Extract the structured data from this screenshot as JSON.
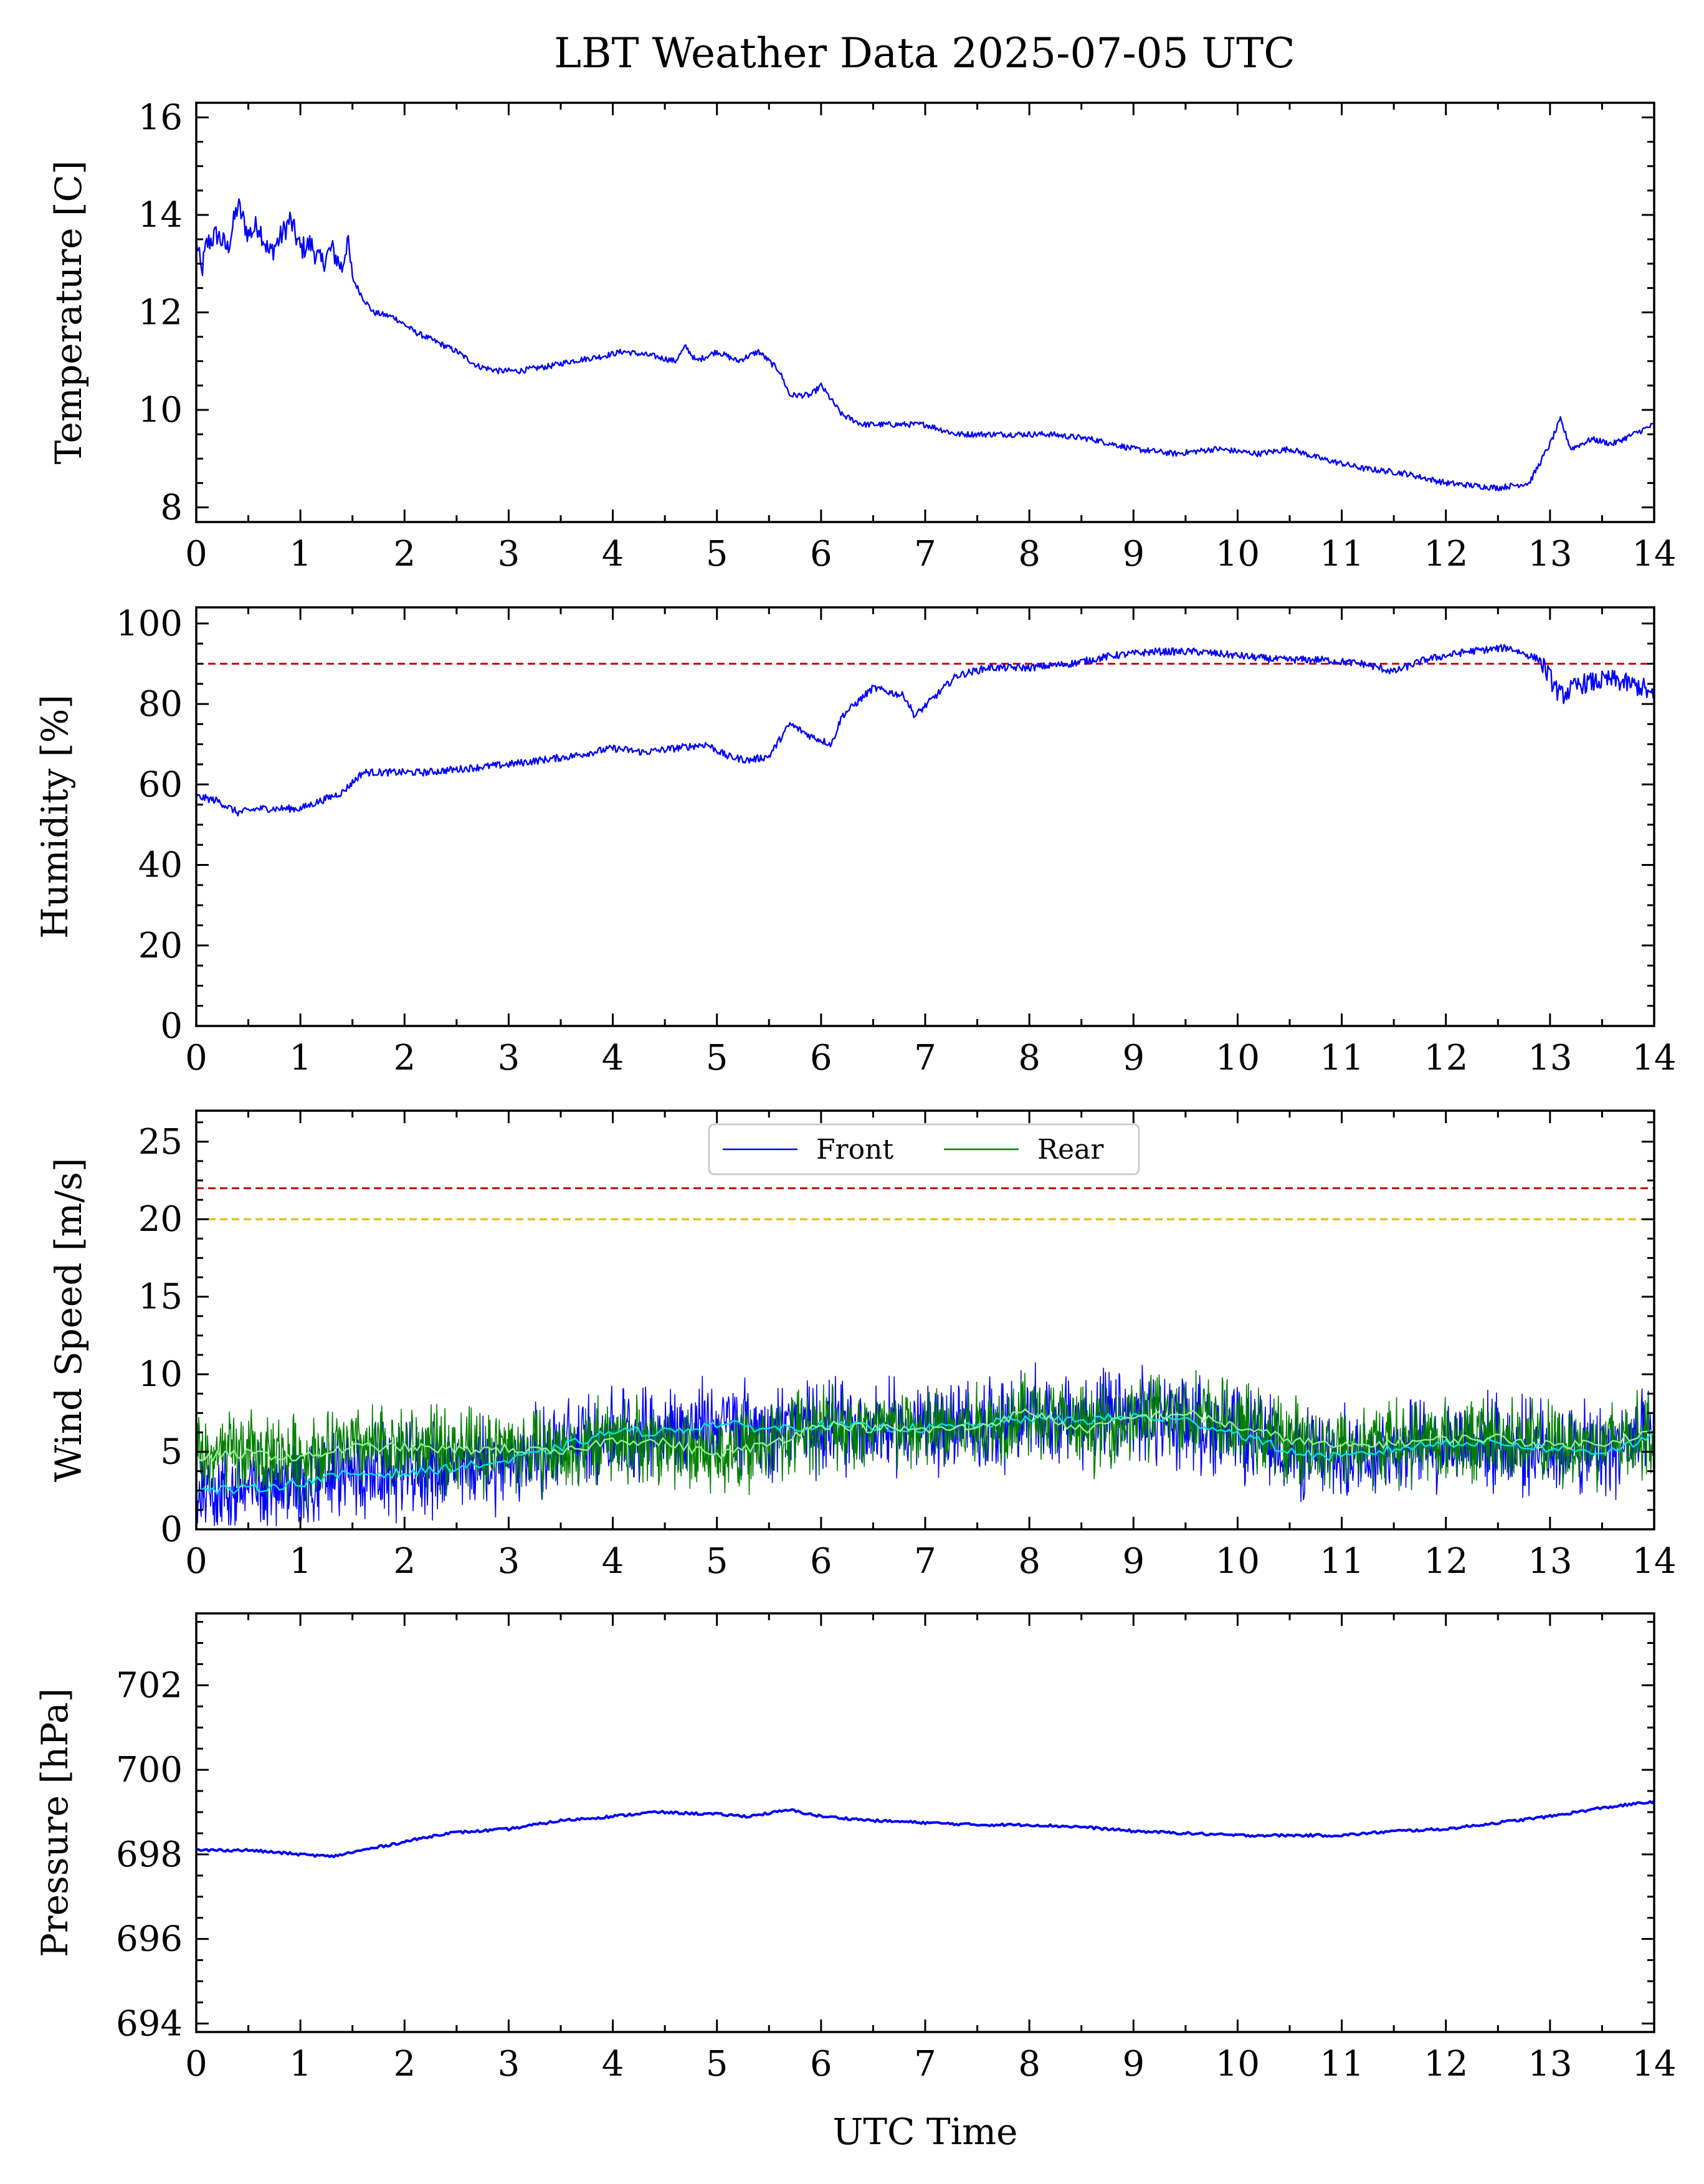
{
  "chart_data": [
    {
      "type": "line",
      "title": "LBT Weather Data 2025-07-05 UTC",
      "xlabel": "",
      "ylabel": "Temperature [C]",
      "xlim": [
        0,
        14
      ],
      "ylim": [
        7.7,
        16.3
      ],
      "yticks": [
        8,
        10,
        12,
        14,
        16
      ],
      "xticks": [
        0,
        1,
        2,
        3,
        4,
        5,
        6,
        7,
        8,
        9,
        10,
        11,
        12,
        13,
        14
      ],
      "series": [
        {
          "color": "#0000ff",
          "points": [
            [
              0,
              13.5
            ],
            [
              0.05,
              12.8
            ],
            [
              0.1,
              13.4
            ],
            [
              0.2,
              13.6
            ],
            [
              0.3,
              13.3
            ],
            [
              0.4,
              14.2
            ],
            [
              0.5,
              13.6
            ],
            [
              0.6,
              13.8
            ],
            [
              0.7,
              13.2
            ],
            [
              0.8,
              13.5
            ],
            [
              0.9,
              13.9
            ],
            [
              1.0,
              13.3
            ],
            [
              1.1,
              13.4
            ],
            [
              1.2,
              13.0
            ],
            [
              1.3,
              13.3
            ],
            [
              1.4,
              12.9
            ],
            [
              1.45,
              13.5
            ],
            [
              1.5,
              12.7
            ],
            [
              1.6,
              12.3
            ],
            [
              1.7,
              12.0
            ],
            [
              1.9,
              11.9
            ],
            [
              2.1,
              11.6
            ],
            [
              2.3,
              11.4
            ],
            [
              2.5,
              11.2
            ],
            [
              2.7,
              10.9
            ],
            [
              2.9,
              10.8
            ],
            [
              3.1,
              10.8
            ],
            [
              3.4,
              10.9
            ],
            [
              3.6,
              11.0
            ],
            [
              3.9,
              11.1
            ],
            [
              4.1,
              11.2
            ],
            [
              4.4,
              11.1
            ],
            [
              4.6,
              11.0
            ],
            [
              4.7,
              11.3
            ],
            [
              4.8,
              11.0
            ],
            [
              5.0,
              11.2
            ],
            [
              5.2,
              11.0
            ],
            [
              5.4,
              11.2
            ],
            [
              5.6,
              10.8
            ],
            [
              5.7,
              10.3
            ],
            [
              5.9,
              10.3
            ],
            [
              6.0,
              10.5
            ],
            [
              6.2,
              9.9
            ],
            [
              6.4,
              9.7
            ],
            [
              6.7,
              9.7
            ],
            [
              7.0,
              9.7
            ],
            [
              7.3,
              9.5
            ],
            [
              7.7,
              9.5
            ],
            [
              8.2,
              9.5
            ],
            [
              8.6,
              9.4
            ],
            [
              9.0,
              9.2
            ],
            [
              9.4,
              9.1
            ],
            [
              9.8,
              9.2
            ],
            [
              10.2,
              9.1
            ],
            [
              10.5,
              9.2
            ],
            [
              10.8,
              9.0
            ],
            [
              11.2,
              8.8
            ],
            [
              11.6,
              8.7
            ],
            [
              12.0,
              8.5
            ],
            [
              12.5,
              8.4
            ],
            [
              12.8,
              8.5
            ],
            [
              12.9,
              8.9
            ],
            [
              13.0,
              9.3
            ],
            [
              13.1,
              9.8
            ],
            [
              13.2,
              9.2
            ],
            [
              13.4,
              9.4
            ],
            [
              13.6,
              9.3
            ],
            [
              13.8,
              9.5
            ],
            [
              14.0,
              9.7
            ]
          ]
        }
      ]
    },
    {
      "type": "line",
      "xlabel": "",
      "ylabel": "Humidity [%]",
      "xlim": [
        0,
        14
      ],
      "ylim": [
        0,
        104
      ],
      "yticks": [
        0,
        20,
        40,
        60,
        80,
        100
      ],
      "xticks": [
        0,
        1,
        2,
        3,
        4,
        5,
        6,
        7,
        8,
        9,
        10,
        11,
        12,
        13,
        14
      ],
      "threshold_lines": [
        {
          "y": 90,
          "color": "#cc0000"
        }
      ],
      "series": [
        {
          "color": "#0000ff",
          "points": [
            [
              0,
              57
            ],
            [
              0.2,
              56
            ],
            [
              0.4,
              53
            ],
            [
              0.6,
              54
            ],
            [
              0.8,
              54
            ],
            [
              1.0,
              54
            ],
            [
              1.2,
              56
            ],
            [
              1.4,
              58
            ],
            [
              1.6,
              63
            ],
            [
              1.8,
              63
            ],
            [
              2.2,
              63
            ],
            [
              2.6,
              64
            ],
            [
              3.0,
              65
            ],
            [
              3.3,
              66
            ],
            [
              3.6,
              67
            ],
            [
              4.0,
              69
            ],
            [
              4.3,
              68
            ],
            [
              4.6,
              69
            ],
            [
              4.9,
              70
            ],
            [
              5.1,
              67
            ],
            [
              5.3,
              66
            ],
            [
              5.5,
              67
            ],
            [
              5.7,
              75
            ],
            [
              5.9,
              72
            ],
            [
              6.1,
              70
            ],
            [
              6.2,
              77
            ],
            [
              6.5,
              84
            ],
            [
              6.8,
              82
            ],
            [
              6.9,
              77
            ],
            [
              7.1,
              82
            ],
            [
              7.3,
              87
            ],
            [
              7.6,
              89
            ],
            [
              8.0,
              89
            ],
            [
              8.4,
              90
            ],
            [
              8.8,
              92
            ],
            [
              9.2,
              93
            ],
            [
              9.6,
              93
            ],
            [
              10.0,
              92
            ],
            [
              10.4,
              91
            ],
            [
              10.8,
              91
            ],
            [
              11.2,
              90
            ],
            [
              11.5,
              88
            ],
            [
              11.8,
              91
            ],
            [
              12.2,
              93
            ],
            [
              12.6,
              94
            ],
            [
              12.9,
              91
            ],
            [
              13.1,
              82
            ],
            [
              13.3,
              85
            ],
            [
              13.6,
              86
            ],
            [
              13.9,
              84
            ],
            [
              14.0,
              81
            ]
          ]
        }
      ]
    },
    {
      "type": "line",
      "xlabel": "",
      "ylabel": "Wind Speed [m/s]",
      "xlim": [
        0,
        14
      ],
      "ylim": [
        0,
        27
      ],
      "yticks": [
        0,
        5,
        10,
        15,
        20,
        25
      ],
      "xticks": [
        0,
        1,
        2,
        3,
        4,
        5,
        6,
        7,
        8,
        9,
        10,
        11,
        12,
        13,
        14
      ],
      "legend": {
        "placement": "top-center",
        "entries": [
          "Front",
          "Rear"
        ]
      },
      "threshold_lines": [
        {
          "y": 22,
          "color": "#cc0000"
        },
        {
          "y": 20,
          "color": "#e6b800"
        }
      ],
      "series": [
        {
          "name": "Front",
          "color": "#0000ff",
          "smooth_color": "#00e5e5",
          "points": [
            [
              0,
              2.5
            ],
            [
              0.5,
              2.6
            ],
            [
              1.0,
              3.0
            ],
            [
              1.5,
              3.6
            ],
            [
              2.0,
              3.6
            ],
            [
              2.5,
              4.0
            ],
            [
              3.0,
              4.4
            ],
            [
              3.5,
              5.3
            ],
            [
              4.0,
              6.3
            ],
            [
              4.5,
              6.3
            ],
            [
              5.0,
              6.8
            ],
            [
              5.5,
              6.5
            ],
            [
              6.0,
              6.7
            ],
            [
              6.5,
              6.6
            ],
            [
              7.0,
              6.5
            ],
            [
              7.5,
              6.7
            ],
            [
              8.0,
              7.2
            ],
            [
              8.5,
              7.0
            ],
            [
              9.0,
              7.3
            ],
            [
              9.5,
              7.0
            ],
            [
              10.0,
              6.2
            ],
            [
              10.5,
              5.0
            ],
            [
              11.0,
              4.6
            ],
            [
              11.5,
              5.2
            ],
            [
              12.0,
              5.6
            ],
            [
              12.5,
              5.6
            ],
            [
              13.0,
              5.2
            ],
            [
              13.5,
              5.0
            ],
            [
              14.0,
              5.9
            ]
          ]
        },
        {
          "name": "Rear",
          "color": "#008000",
          "smooth_color": "#90ee90",
          "points": [
            [
              0,
              4.6
            ],
            [
              0.5,
              4.9
            ],
            [
              1.0,
              4.6
            ],
            [
              1.5,
              5.3
            ],
            [
              2.0,
              5.3
            ],
            [
              2.5,
              5.1
            ],
            [
              3.0,
              5.2
            ],
            [
              3.5,
              4.9
            ],
            [
              4.0,
              5.8
            ],
            [
              4.5,
              5.6
            ],
            [
              5.0,
              4.8
            ],
            [
              5.5,
              5.5
            ],
            [
              6.0,
              6.8
            ],
            [
              6.5,
              6.5
            ],
            [
              7.0,
              6.4
            ],
            [
              7.5,
              6.6
            ],
            [
              8.0,
              7.6
            ],
            [
              8.5,
              6.4
            ],
            [
              9.0,
              7.2
            ],
            [
              9.5,
              7.5
            ],
            [
              10.0,
              6.6
            ],
            [
              10.5,
              5.8
            ],
            [
              11.0,
              5.3
            ],
            [
              11.5,
              5.6
            ],
            [
              12.0,
              5.8
            ],
            [
              12.5,
              5.9
            ],
            [
              13.0,
              5.4
            ],
            [
              13.5,
              5.6
            ],
            [
              14.0,
              6.3
            ]
          ]
        }
      ]
    },
    {
      "type": "line",
      "xlabel": "UTC Time",
      "ylabel": "Pressure [hPa]",
      "xlim": [
        0,
        14
      ],
      "ylim": [
        693.8,
        703.7
      ],
      "yticks": [
        694,
        696,
        698,
        700,
        702
      ],
      "xticks": [
        0,
        1,
        2,
        3,
        4,
        5,
        6,
        7,
        8,
        9,
        10,
        11,
        12,
        13,
        14
      ],
      "series": [
        {
          "color": "#0000ff",
          "points": [
            [
              0,
              698.1
            ],
            [
              0.5,
              698.1
            ],
            [
              1.0,
              698.0
            ],
            [
              1.3,
              697.95
            ],
            [
              1.6,
              698.1
            ],
            [
              2.0,
              698.3
            ],
            [
              2.4,
              698.5
            ],
            [
              3.0,
              698.6
            ],
            [
              3.5,
              698.8
            ],
            [
              4.0,
              698.9
            ],
            [
              4.4,
              699.0
            ],
            [
              5.0,
              698.95
            ],
            [
              5.3,
              698.9
            ],
            [
              5.7,
              699.05
            ],
            [
              6.0,
              698.9
            ],
            [
              6.5,
              698.8
            ],
            [
              7.0,
              698.75
            ],
            [
              7.5,
              698.7
            ],
            [
              8.0,
              698.7
            ],
            [
              8.5,
              698.65
            ],
            [
              9.0,
              698.55
            ],
            [
              9.5,
              698.5
            ],
            [
              10.0,
              698.45
            ],
            [
              10.5,
              698.45
            ],
            [
              11.0,
              698.45
            ],
            [
              11.5,
              698.55
            ],
            [
              12.0,
              698.6
            ],
            [
              12.5,
              698.75
            ],
            [
              13.0,
              698.9
            ],
            [
              13.5,
              699.1
            ],
            [
              14.0,
              699.25
            ]
          ]
        }
      ]
    }
  ]
}
